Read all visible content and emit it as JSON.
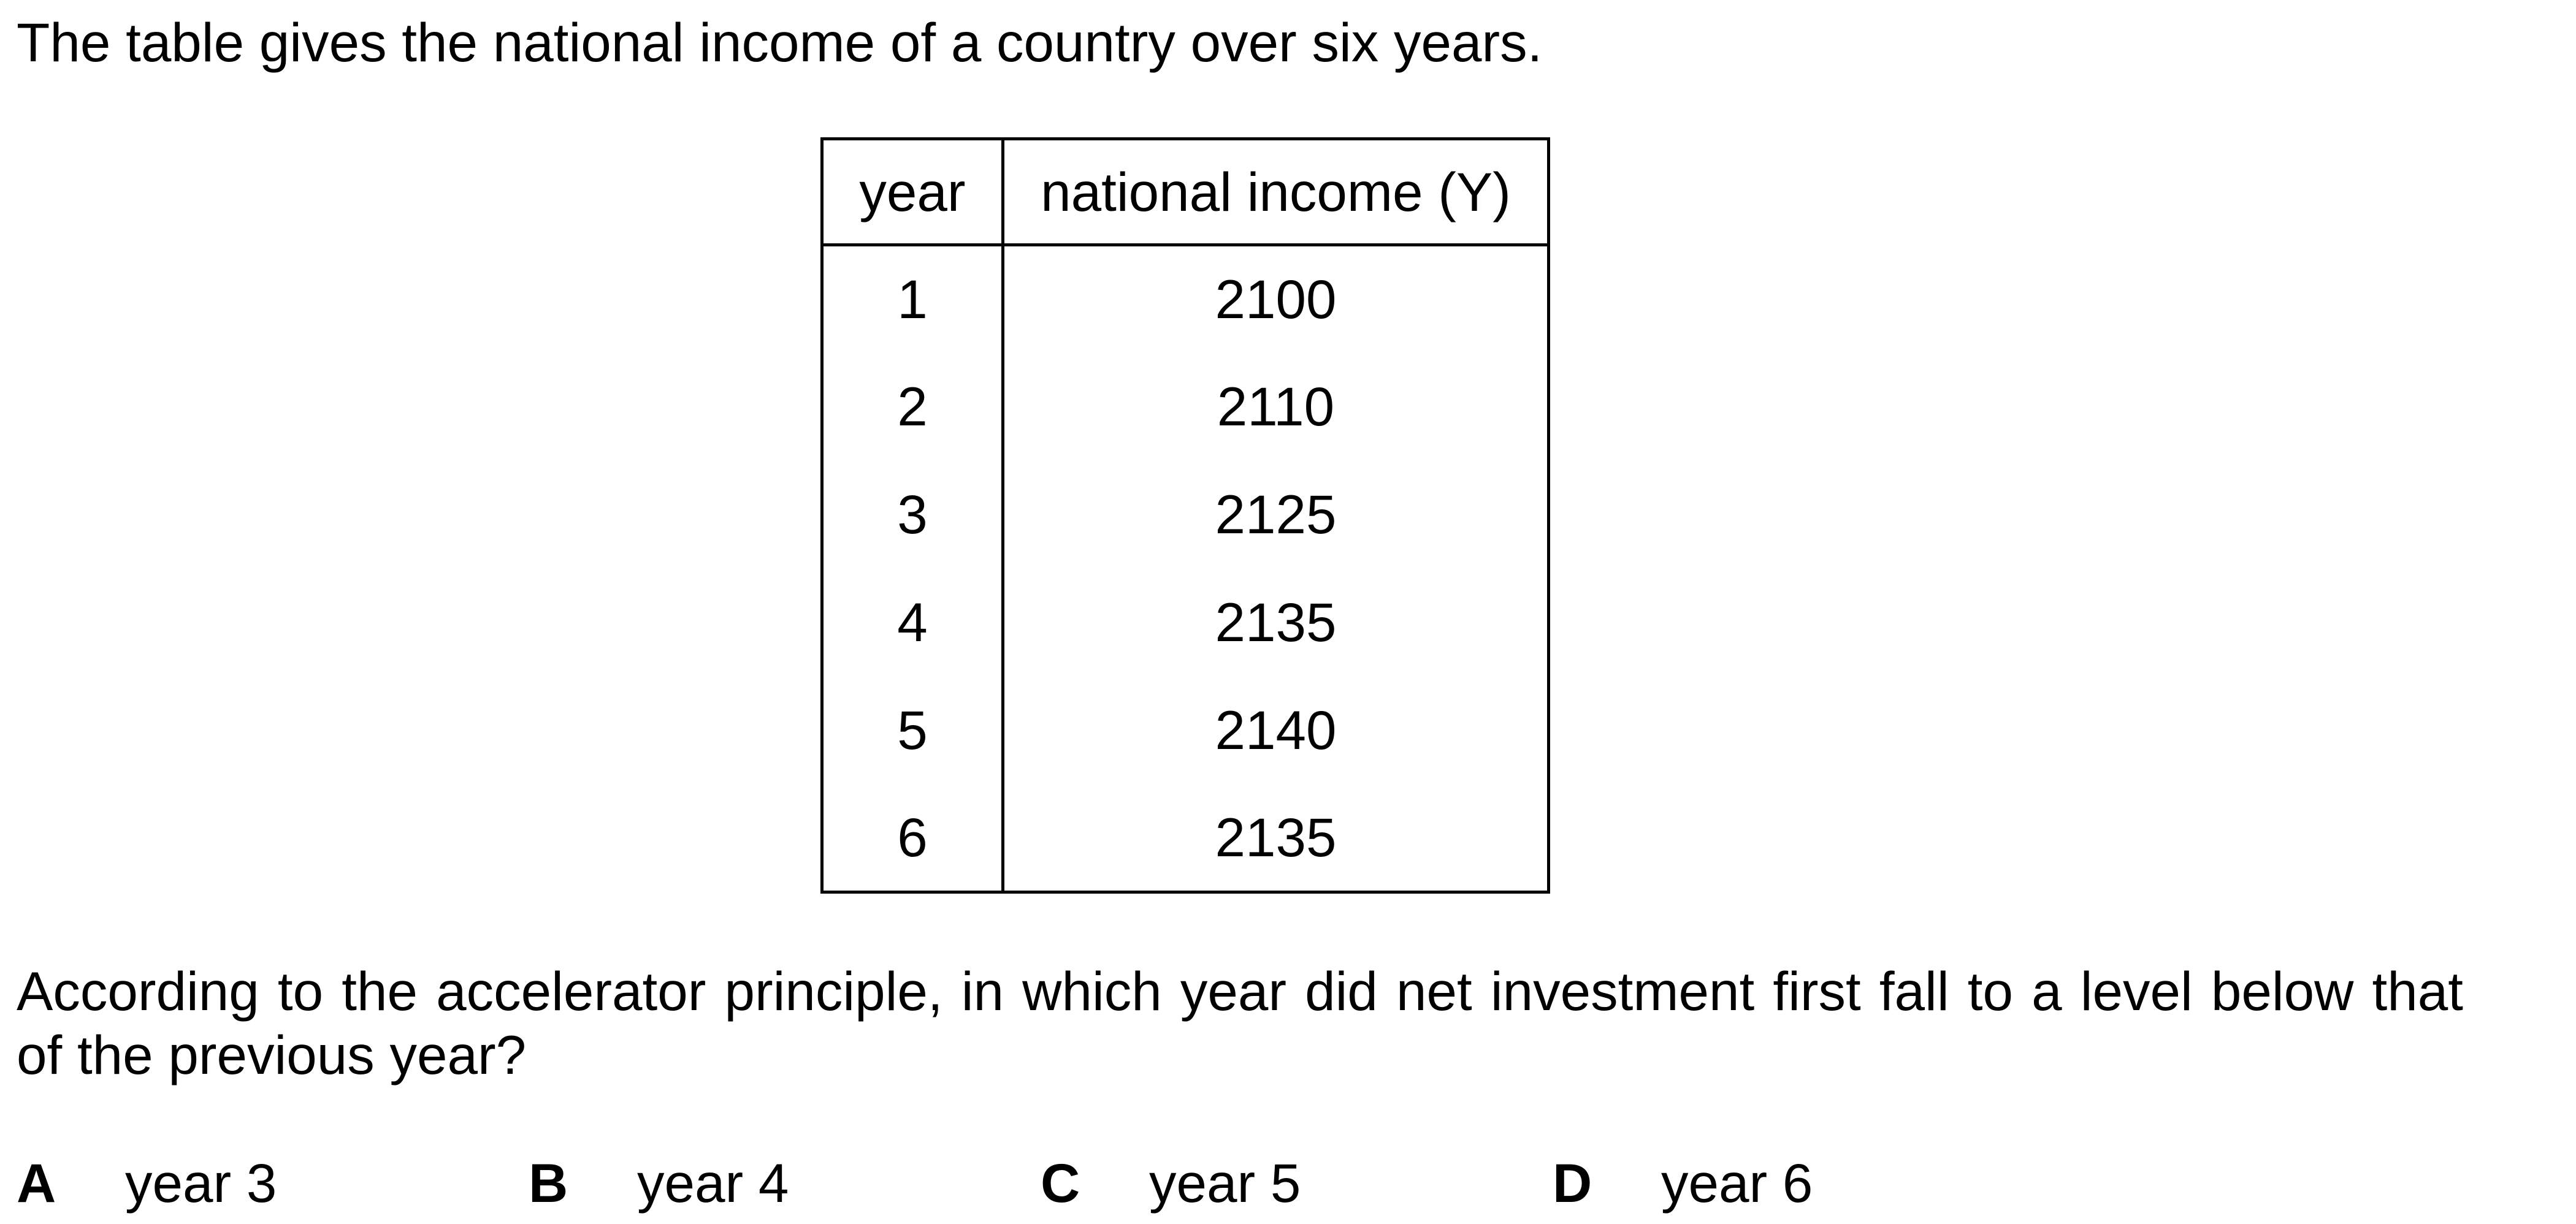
{
  "intro": "The table gives the national income of a country over six years.",
  "table": {
    "headers": [
      "year",
      "national income (Y)"
    ],
    "rows": [
      [
        "1",
        "2100"
      ],
      [
        "2",
        "2110"
      ],
      [
        "3",
        "2125"
      ],
      [
        "4",
        "2135"
      ],
      [
        "5",
        "2140"
      ],
      [
        "6",
        "2135"
      ]
    ]
  },
  "question": "According to the accelerator principle, in which year did net investment first fall to a level below that of the previous year?",
  "options": [
    {
      "letter": "A",
      "text": "year 3"
    },
    {
      "letter": "B",
      "text": "year 4"
    },
    {
      "letter": "C",
      "text": "year 5"
    },
    {
      "letter": "D",
      "text": "year 6"
    }
  ]
}
